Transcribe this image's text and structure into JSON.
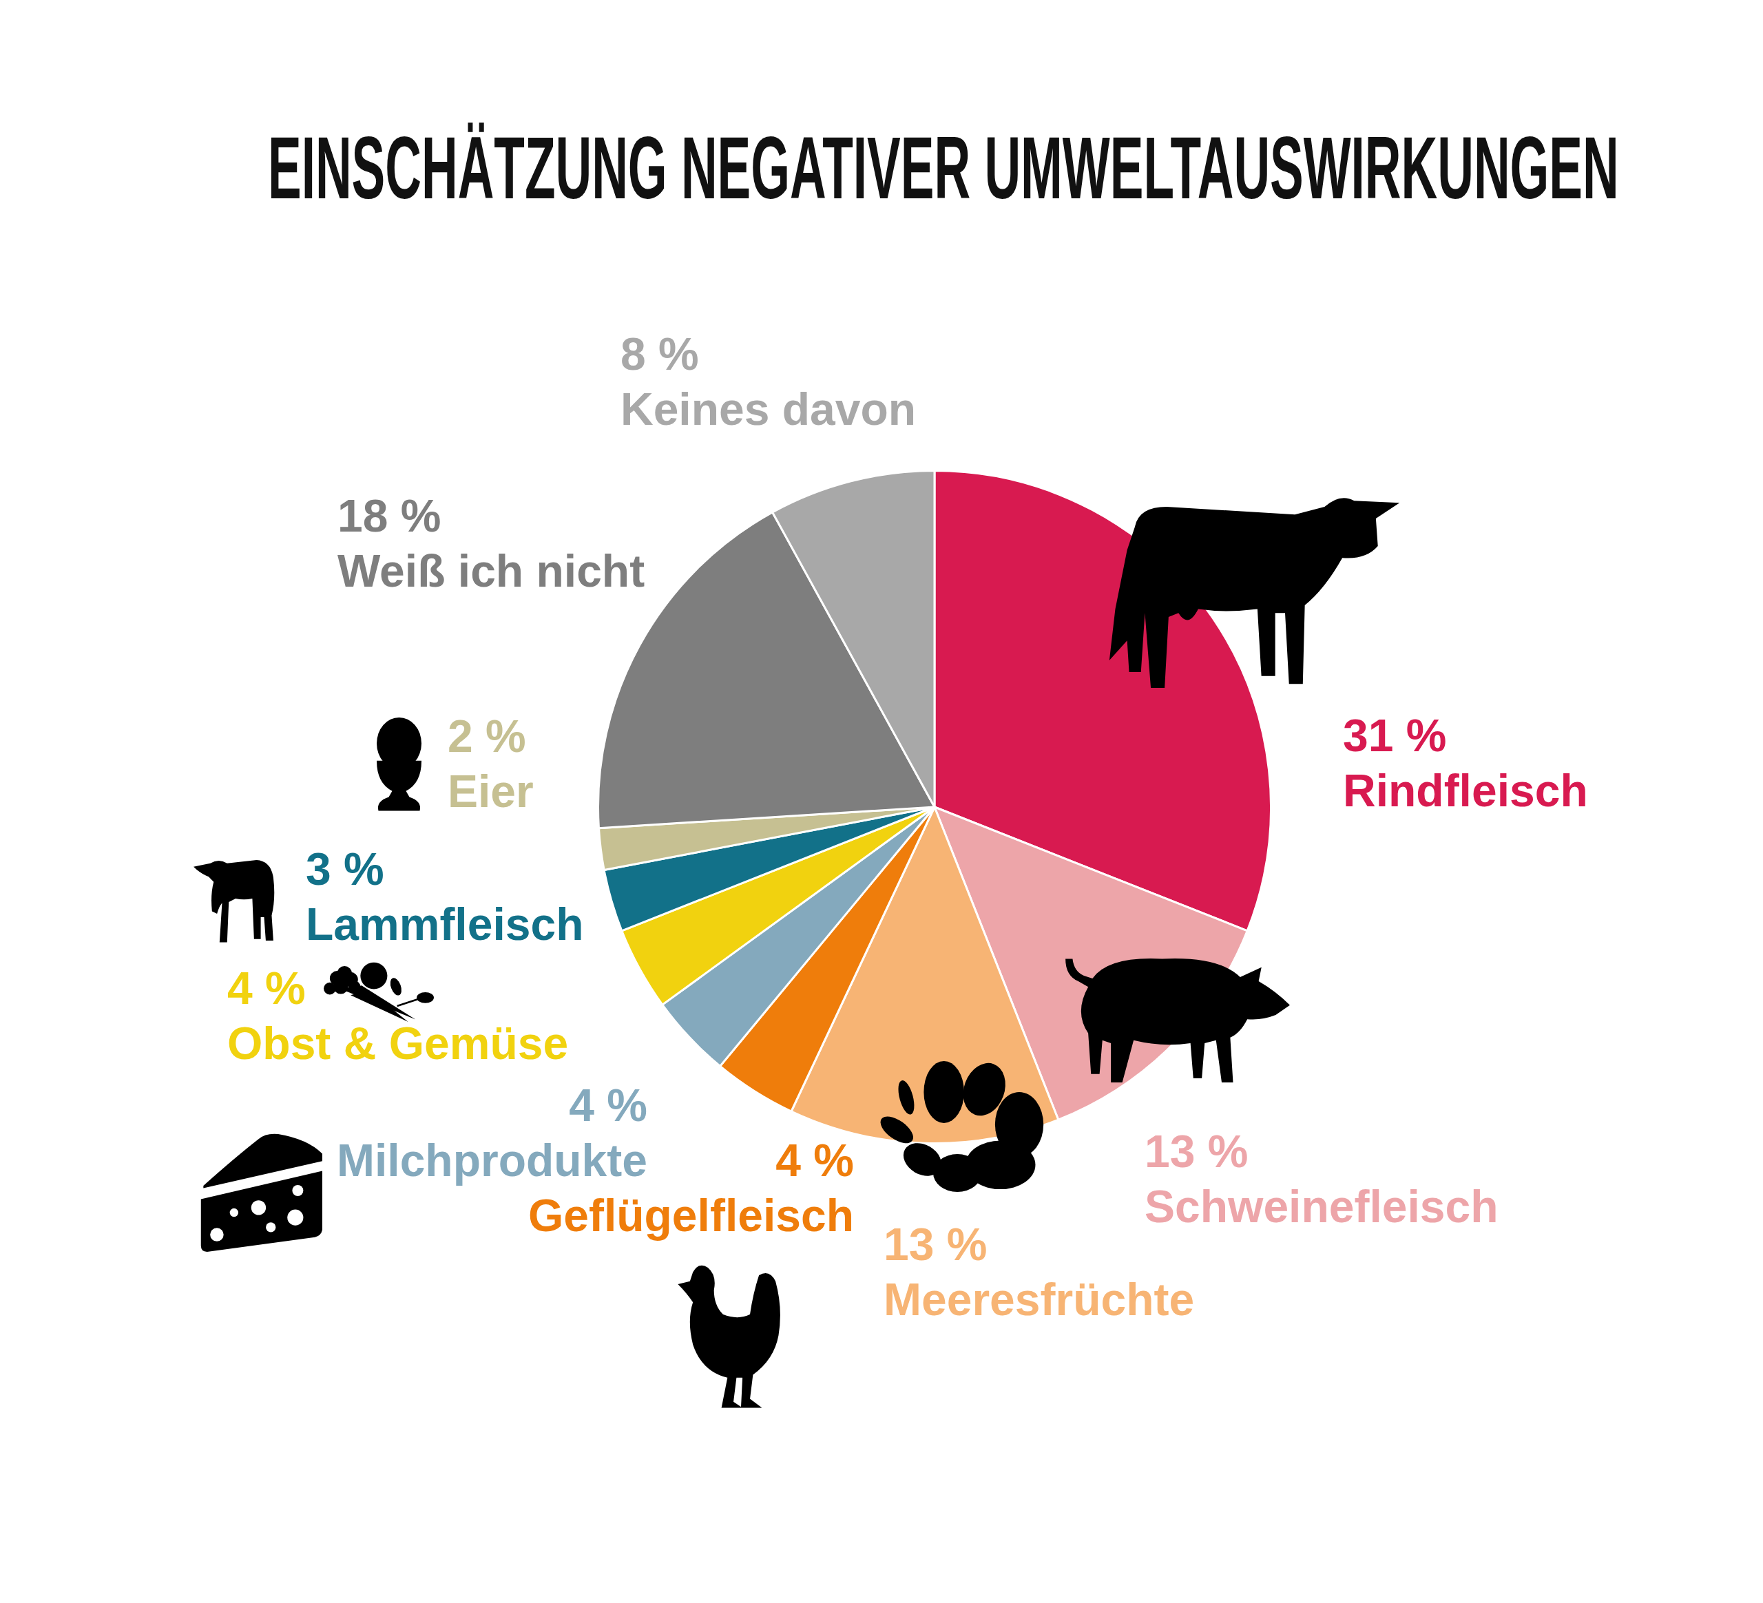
{
  "chart_data": {
    "type": "pie",
    "title": "EINSCHÄTZUNG NEGATIVER UMWELTAUSWIRKUNGEN",
    "categories": [
      "Rindfleisch",
      "Schweinefleisch",
      "Meeresfrüchte",
      "Geflügelfleisch",
      "Milchprodukte",
      "Obst & Gemüse",
      "Lammfleisch",
      "Eier",
      "Weiß ich nicht",
      "Keines davon"
    ],
    "values": [
      31,
      13,
      13,
      4,
      4,
      4,
      3,
      2,
      18,
      8
    ],
    "value_labels": [
      "31 %",
      "13 %",
      "13 %",
      "4 %",
      "4 %",
      "4 %",
      "3 %",
      "2 %",
      "18 %",
      "8 %"
    ],
    "colors": [
      "#d81a50",
      "#eda5a9",
      "#f7b474",
      "#ef7d0b",
      "#84a9bd",
      "#f1d20f",
      "#127189",
      "#c6c092",
      "#7e7e7e",
      "#a8a8a8"
    ]
  }
}
